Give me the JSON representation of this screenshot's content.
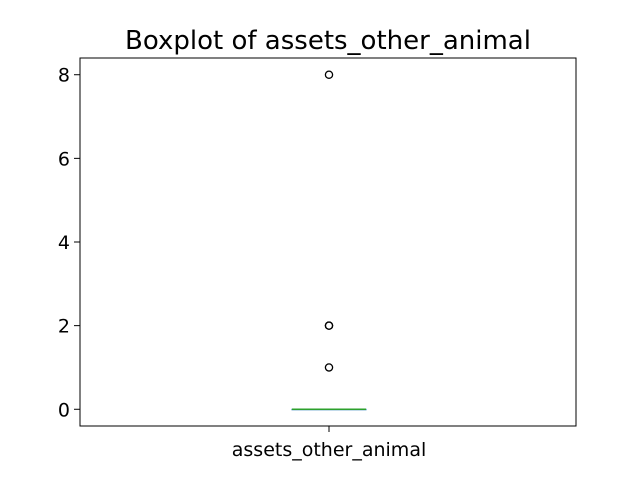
{
  "chart_data": {
    "type": "box",
    "title": "Boxplot of assets_other_animal",
    "xlabel": "",
    "ylabel": "",
    "categories": [
      "assets_other_animal"
    ],
    "ylim": [
      -0.4,
      8.4
    ],
    "yticks": [
      0,
      2,
      4,
      6,
      8
    ],
    "grid": false,
    "box": {
      "q1": 0,
      "median": 0,
      "q3": 0,
      "whisker_low": 0,
      "whisker_high": 0
    },
    "outliers": [
      8,
      2,
      2,
      1
    ],
    "colors": {
      "box": "#1f77b4",
      "median": "#2ca02c",
      "outlier_edge": "#000000"
    }
  }
}
